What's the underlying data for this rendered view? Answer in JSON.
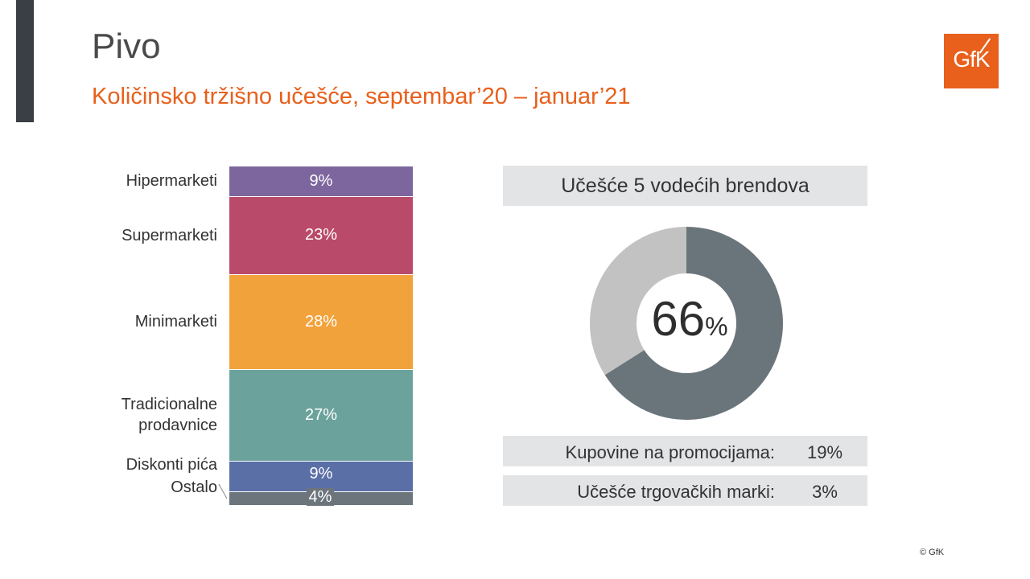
{
  "header": {
    "title": "Pivo",
    "subtitle": "Količinsko tržišno učešće, septembar’20 – januar’21",
    "logo_text": "GfK"
  },
  "chart_data": [
    {
      "type": "bar",
      "subtype": "100% stacked",
      "categories": [
        "Hipermarketi",
        "Supermarketi",
        "Minimarketi",
        "Tradicionalne prodavnice",
        "Diskonti pića",
        "Ostalo"
      ],
      "values": [
        9,
        23,
        28,
        27,
        9,
        4
      ],
      "value_labels": [
        "9%",
        "23%",
        "28%",
        "27%",
        "9%",
        "4%"
      ],
      "label_lines": [
        [
          "Hipermarketi"
        ],
        [
          "Supermarketi"
        ],
        [
          "Minimarketi"
        ],
        [
          "Tradicionalne",
          "prodavnice"
        ],
        [
          "Diskonti pića"
        ],
        [
          "Ostalo"
        ]
      ],
      "colors": [
        "#7d669e",
        "#ba4a6a",
        "#f2a23a",
        "#6ba29c",
        "#5a6fa6",
        "#6c757c"
      ]
    },
    {
      "type": "pie",
      "subtype": "donut",
      "title": "Učešće 5 vodećih brendova",
      "values": [
        66,
        34
      ],
      "center_value": "66",
      "center_unit": "%",
      "colors": [
        "#6a747b",
        "#c2c2c2"
      ]
    }
  ],
  "kpis": [
    {
      "label": "Kupovine na promocijama:",
      "value": "19%"
    },
    {
      "label": "Učešće trgovačkih marki:",
      "value": "3%"
    }
  ],
  "footer": {
    "copyright": "© GfK"
  }
}
